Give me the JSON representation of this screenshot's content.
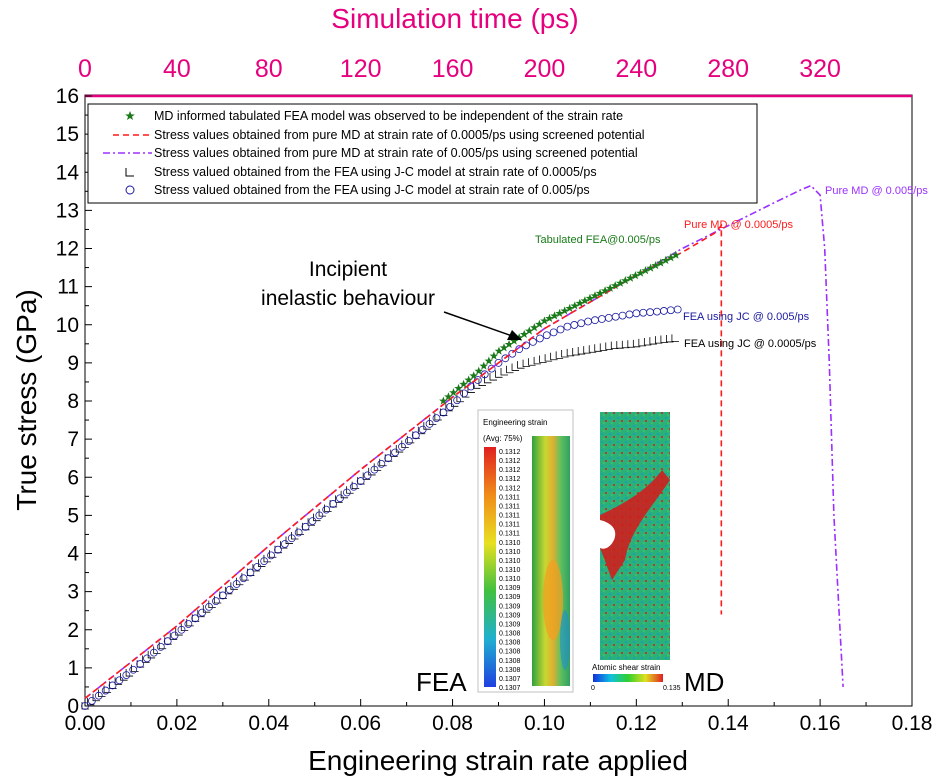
{
  "chart_data": {
    "type": "line",
    "xlabel": "Engineering strain rate applied",
    "ylabel": "True stress (GPa)",
    "top_xlabel": "Simulation time (ps)",
    "xlim": [
      0,
      0.18
    ],
    "ylim": [
      0,
      16
    ],
    "top_xlim": [
      0,
      360
    ],
    "x_ticks": [
      "0.00",
      "0.02",
      "0.04",
      "0.06",
      "0.08",
      "0.10",
      "0.12",
      "0.14",
      "0.16",
      "0.18"
    ],
    "y_ticks": [
      "0",
      "1",
      "2",
      "3",
      "4",
      "5",
      "6",
      "7",
      "8",
      "9",
      "10",
      "11",
      "12",
      "13",
      "14",
      "15",
      "16"
    ],
    "top_ticks": [
      "0",
      "40",
      "80",
      "120",
      "160",
      "200",
      "240",
      "280",
      "320"
    ],
    "grid": false,
    "legend_placement": "top-left",
    "colors": {
      "tabulated": "#1a7a1a",
      "md_0005": "#ff1a1a",
      "md_005": "#9b30ff",
      "jc_0005": "#000000",
      "jc_005": "#1a1aa0",
      "top_axis": "#e6007e"
    },
    "series": [
      {
        "name": "MD informed tabulated FEA model was observed to be independent of the strain rate",
        "marker": "star",
        "x": [
          0.0,
          0.01,
          0.02,
          0.03,
          0.04,
          0.05,
          0.06,
          0.07,
          0.078,
          0.085,
          0.09,
          0.095,
          0.1,
          0.105,
          0.11,
          0.115,
          0.12,
          0.125,
          0.129
        ],
        "y": [
          0.1,
          1.0,
          2.0,
          3.1,
          4.2,
          5.1,
          6.1,
          7.1,
          8.0,
          8.7,
          9.3,
          9.7,
          10.1,
          10.4,
          10.7,
          11.0,
          11.3,
          11.6,
          11.85
        ]
      },
      {
        "name": "Stress values obtained from pure MD at strain rate of 0.0005/ps using screened potential",
        "line": "dash",
        "x": [
          0.0,
          0.02,
          0.04,
          0.06,
          0.08,
          0.09,
          0.1,
          0.11,
          0.12,
          0.13,
          0.137,
          0.1385,
          0.1385
        ],
        "y": [
          0.2,
          2.1,
          4.2,
          6.2,
          8.1,
          9.0,
          9.9,
          10.6,
          11.3,
          11.9,
          12.4,
          12.6,
          2.4
        ]
      },
      {
        "name": "Stress values obtained from pure MD at strain rate of 0.005/ps using screened potential",
        "line": "dashdot",
        "x": [
          0.0,
          0.02,
          0.04,
          0.06,
          0.08,
          0.09,
          0.1,
          0.11,
          0.12,
          0.13,
          0.14,
          0.15,
          0.156,
          0.158,
          0.16,
          0.161,
          0.162,
          0.163,
          0.165
        ],
        "y": [
          0.2,
          2.1,
          4.2,
          6.2,
          8.1,
          9.0,
          9.9,
          10.6,
          11.3,
          12.0,
          12.6,
          13.2,
          13.55,
          13.65,
          13.4,
          12.0,
          9.0,
          5.0,
          0.5
        ]
      },
      {
        "name": "Stress valued obtained from the FEA using J-C model at strain rate of 0.0005/ps",
        "marker": "square",
        "x": [
          0.0,
          0.01,
          0.02,
          0.03,
          0.04,
          0.05,
          0.06,
          0.07,
          0.08,
          0.085,
          0.09,
          0.095,
          0.1,
          0.105,
          0.11,
          0.115,
          0.12,
          0.125,
          0.129
        ],
        "y": [
          0.0,
          0.9,
          1.9,
          2.9,
          3.9,
          4.9,
          5.9,
          6.9,
          7.9,
          8.4,
          8.7,
          8.95,
          9.1,
          9.25,
          9.35,
          9.45,
          9.5,
          9.6,
          9.65
        ]
      },
      {
        "name": "Stress valued obtained from the FEA using J-C model at strain rate of 0.005/ps",
        "marker": "circle",
        "x": [
          0.0,
          0.01,
          0.02,
          0.03,
          0.04,
          0.05,
          0.06,
          0.07,
          0.08,
          0.085,
          0.09,
          0.095,
          0.1,
          0.105,
          0.11,
          0.115,
          0.12,
          0.125,
          0.129
        ],
        "y": [
          0.0,
          0.9,
          1.9,
          2.9,
          3.9,
          4.9,
          5.9,
          6.9,
          7.9,
          8.5,
          9.0,
          9.4,
          9.7,
          9.95,
          10.1,
          10.2,
          10.3,
          10.35,
          10.4
        ]
      }
    ],
    "annotations": {
      "incipient_line1": "Incipient",
      "incipient_line2": "inelastic behaviour",
      "tabulated": "Tabulated FEA@0.005/ps",
      "pure_md_0005": "Pure MD @ 0.0005/ps",
      "pure_md_005": "Pure MD @ 0.005/ps",
      "fea_jc_005": "FEA using JC @ 0.005/ps",
      "fea_jc_0005": "FEA using JC @ 0.0005/ps"
    },
    "inset": {
      "fea_label": "FEA",
      "md_label": "MD",
      "fea_title": "Engineering strain",
      "fea_avg": "(Avg: 75%)",
      "fea_scale": [
        "0.1312",
        "0.1312",
        "0.1312",
        "0.1312",
        "0.1312",
        "0.1311",
        "0.1311",
        "0.1311",
        "0.1311",
        "0.1311",
        "0.1310",
        "0.1310",
        "0.1310",
        "0.1310",
        "0.1310",
        "0.1309",
        "0.1309",
        "0.1309",
        "0.1309",
        "0.1309",
        "0.1308",
        "0.1308",
        "0.1308",
        "0.1308",
        "0.1308",
        "0.1307",
        "0.1307"
      ],
      "md_caption": "Atomic shear strain",
      "md_min": "0",
      "md_max": "0.135"
    }
  }
}
